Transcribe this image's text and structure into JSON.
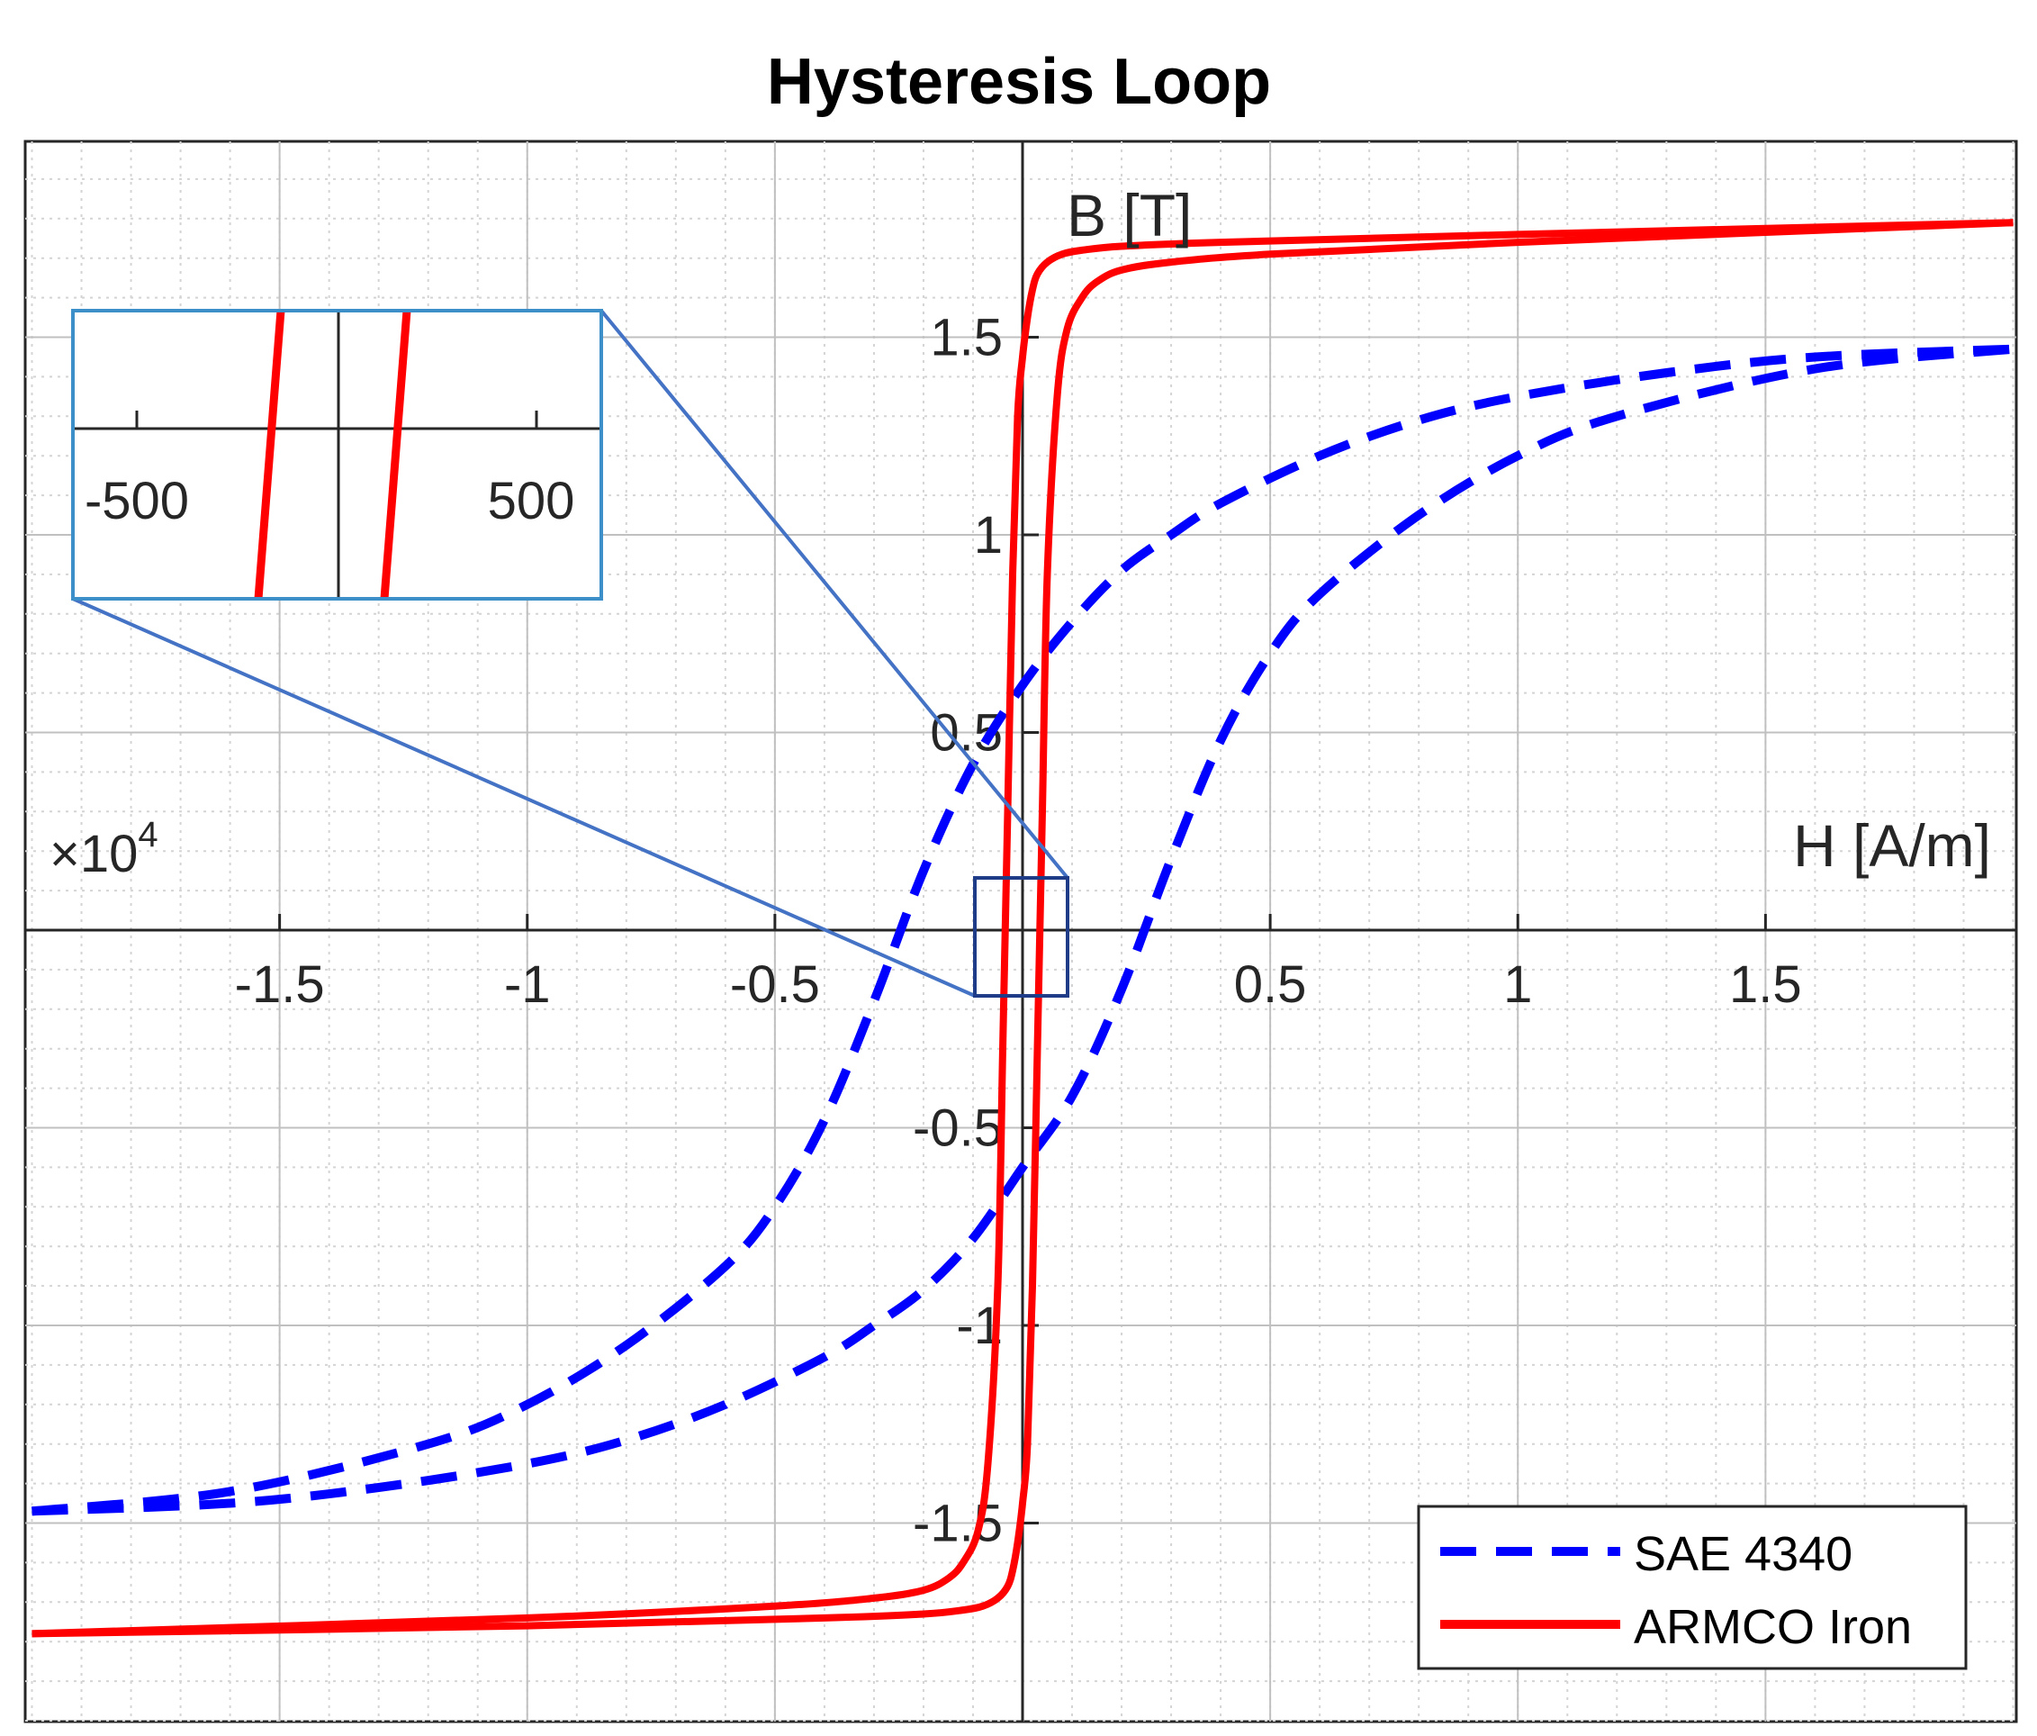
{
  "chart_data": {
    "type": "line",
    "title": "Hysteresis Loop",
    "xlabel": "H [A/m]",
    "ylabel": "B [T]",
    "x_multiplier": "×10",
    "x_multiplier_exp": "4",
    "xlim": [
      -2,
      2
    ],
    "ylim": [
      -2,
      2
    ],
    "x_ticks": [
      -1.5,
      -1,
      -0.5,
      0.5,
      1,
      1.5
    ],
    "x_tick_labels": [
      "-1.5",
      "-1",
      "-0.5",
      "0.5",
      "1",
      "1.5"
    ],
    "y_ticks": [
      -1.5,
      -1,
      -0.5,
      0.5,
      1,
      1.5
    ],
    "y_tick_labels": [
      "-1.5",
      "-1",
      "-0.5",
      "0.5",
      "1",
      "1.5"
    ],
    "grid": "on (minor dotted)",
    "legend_position": "bottom-right",
    "colors": {
      "sae": "#0000ff",
      "armco": "#ff0000",
      "zoom": "#4472c4",
      "zoom_box": "#1f3c88",
      "inset_frame": "#3c8fc8"
    },
    "series": [
      {
        "name": "SAE 4340",
        "style": "dashed",
        "color": "#0000ff",
        "branches": [
          {
            "x": [
              -2,
              -1.6,
              -1.2,
              -1.0,
              -0.8,
              -0.6,
              -0.5,
              -0.4,
              -0.3,
              -0.2,
              -0.1,
              0.0,
              0.1,
              0.2,
              0.3,
              0.4,
              0.6,
              0.8,
              1.0,
              1.3,
              1.6,
              2
            ],
            "y": [
              -1.47,
              -1.42,
              -1.3,
              -1.2,
              -1.05,
              -0.85,
              -0.7,
              -0.48,
              -0.18,
              0.15,
              0.42,
              0.62,
              0.78,
              0.91,
              1.0,
              1.08,
              1.2,
              1.29,
              1.35,
              1.41,
              1.45,
              1.47
            ]
          },
          {
            "x": [
              -2,
              -1.6,
              -1.3,
              -1.0,
              -0.8,
              -0.6,
              -0.4,
              -0.3,
              -0.2,
              -0.1,
              0.0,
              0.1,
              0.2,
              0.3,
              0.4,
              0.5,
              0.6,
              0.8,
              1.0,
              1.2,
              1.6,
              2
            ],
            "y": [
              -1.47,
              -1.45,
              -1.41,
              -1.35,
              -1.29,
              -1.2,
              -1.08,
              -1.0,
              -0.91,
              -0.78,
              -0.6,
              -0.42,
              -0.15,
              0.18,
              0.48,
              0.7,
              0.85,
              1.05,
              1.2,
              1.3,
              1.42,
              1.47
            ]
          }
        ]
      },
      {
        "name": "ARMCO Iron",
        "style": "solid",
        "color": "#ff0000",
        "branches": [
          {
            "x": [
              -2,
              -1.0,
              -0.5,
              -0.3,
              -0.2,
              -0.15,
              -0.12,
              -0.09,
              -0.07,
              -0.05,
              -0.04,
              -0.03,
              -0.02,
              -0.01,
              0.0,
              0.01,
              0.02,
              0.03,
              0.05,
              0.08,
              0.12,
              0.2,
              0.4,
              1.0,
              2
            ],
            "y": [
              -1.78,
              -1.74,
              -1.71,
              -1.69,
              -1.67,
              -1.64,
              -1.6,
              -1.52,
              -1.35,
              -0.9,
              -0.3,
              0.3,
              0.9,
              1.3,
              1.45,
              1.55,
              1.62,
              1.66,
              1.69,
              1.71,
              1.72,
              1.73,
              1.74,
              1.76,
              1.79
            ]
          },
          {
            "x": [
              -2,
              -1.0,
              -0.4,
              -0.2,
              -0.12,
              -0.08,
              -0.05,
              -0.03,
              -0.02,
              -0.01,
              0.0,
              0.01,
              0.02,
              0.03,
              0.04,
              0.05,
              0.07,
              0.09,
              0.12,
              0.15,
              0.2,
              0.3,
              0.5,
              1.0,
              2
            ],
            "y": [
              -1.78,
              -1.76,
              -1.74,
              -1.73,
              -1.72,
              -1.71,
              -1.69,
              -1.66,
              -1.62,
              -1.55,
              -1.45,
              -1.3,
              -0.9,
              -0.3,
              0.3,
              0.9,
              1.35,
              1.52,
              1.6,
              1.64,
              1.67,
              1.69,
              1.71,
              1.74,
              1.79
            ]
          }
        ]
      }
    ],
    "inset": {
      "x_ticks": [
        -500,
        500
      ],
      "x_tick_labels": [
        "-500",
        "500"
      ]
    },
    "legend": [
      "SAE 4340",
      "ARMCO Iron"
    ]
  }
}
